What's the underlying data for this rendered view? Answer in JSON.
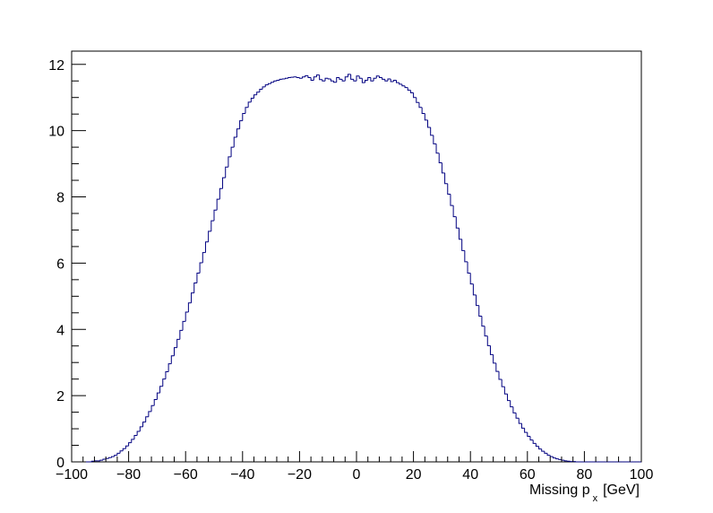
{
  "chart_data": {
    "type": "histogram",
    "title": "",
    "xlabel": {
      "text": "Missing p",
      "sub": "x",
      "unit": "[GeV]"
    },
    "ylabel": "",
    "xlim": [
      -100,
      100
    ],
    "ylim": [
      0,
      12.4
    ],
    "grid": false,
    "x_ticks": [
      -100,
      -80,
      -60,
      -40,
      -20,
      0,
      20,
      40,
      60,
      80,
      100
    ],
    "x_tick_labels": [
      "−100",
      "−80",
      "−60",
      "−40",
      "−20",
      "0",
      "20",
      "40",
      "60",
      "80",
      "100"
    ],
    "y_ticks": [
      0,
      2,
      4,
      6,
      8,
      10,
      12
    ],
    "y_tick_labels": [
      "0",
      "2",
      "4",
      "6",
      "8",
      "10",
      "12"
    ],
    "line_color": "#000080",
    "bins": {
      "start": -100,
      "width": 1,
      "values": [
        0,
        0,
        0,
        0,
        0,
        0,
        0,
        0.02,
        0.03,
        0.03,
        0.05,
        0.08,
        0.1,
        0.13,
        0.16,
        0.2,
        0.26,
        0.33,
        0.4,
        0.48,
        0.58,
        0.68,
        0.8,
        0.92,
        1.06,
        1.2,
        1.36,
        1.52,
        1.7,
        1.88,
        2.08,
        2.28,
        2.5,
        2.72,
        2.96,
        3.2,
        3.45,
        3.7,
        3.97,
        4.24,
        4.52,
        4.8,
        5.1,
        5.4,
        5.7,
        6.01,
        6.32,
        6.64,
        6.96,
        7.28,
        7.6,
        7.93,
        8.25,
        8.58,
        8.9,
        9.21,
        9.5,
        9.8,
        10.05,
        10.3,
        10.52,
        10.7,
        10.86,
        10.98,
        11.08,
        11.16,
        11.25,
        11.32,
        11.38,
        11.42,
        11.46,
        11.5,
        11.52,
        11.55,
        11.56,
        11.58,
        11.6,
        11.61,
        11.62,
        11.6,
        11.58,
        11.62,
        11.66,
        11.6,
        11.52,
        11.62,
        11.68,
        11.54,
        11.5,
        11.58,
        11.56,
        11.5,
        11.46,
        11.6,
        11.55,
        11.5,
        11.62,
        11.7,
        11.55,
        11.5,
        11.65,
        11.58,
        11.45,
        11.52,
        11.6,
        11.5,
        11.58,
        11.65,
        11.6,
        11.55,
        11.5,
        11.56,
        11.48,
        11.52,
        11.45,
        11.4,
        11.35,
        11.3,
        11.22,
        11.14,
        11.0,
        10.85,
        10.7,
        10.52,
        10.32,
        10.1,
        9.86,
        9.6,
        9.32,
        9.03,
        8.72,
        8.4,
        8.08,
        7.74,
        7.4,
        7.06,
        6.72,
        6.38,
        6.04,
        5.7,
        5.37,
        5.04,
        4.72,
        4.4,
        4.1,
        3.8,
        3.51,
        3.24,
        2.98,
        2.73,
        2.49,
        2.27,
        2.05,
        1.85,
        1.66,
        1.48,
        1.32,
        1.16,
        1.02,
        0.89,
        0.77,
        0.66,
        0.56,
        0.47,
        0.39,
        0.32,
        0.26,
        0.2,
        0.16,
        0.12,
        0.09,
        0.07,
        0.05,
        0.03,
        0.02,
        0.01,
        0.01,
        0,
        0,
        0,
        0,
        0,
        0,
        0,
        0,
        0,
        0,
        0,
        0,
        0,
        0,
        0,
        0,
        0,
        0,
        0,
        0,
        0,
        0,
        0
      ]
    }
  }
}
